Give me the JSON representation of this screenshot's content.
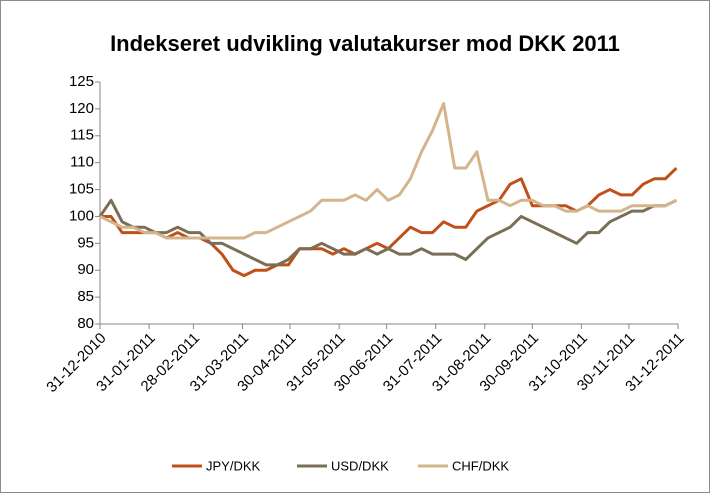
{
  "chart_data": {
    "type": "line",
    "title": "Indekseret udvikling valutakurser mod DKK 2011",
    "x": [
      "31-12-2010",
      "07-01-2011",
      "14-01-2011",
      "21-01-2011",
      "28-01-2011",
      "04-02-2011",
      "11-02-2011",
      "18-02-2011",
      "25-02-2011",
      "04-03-2011",
      "11-03-2011",
      "18-03-2011",
      "25-03-2011",
      "01-04-2011",
      "08-04-2011",
      "15-04-2011",
      "22-04-2011",
      "29-04-2011",
      "06-05-2011",
      "13-05-2011",
      "20-05-2011",
      "27-05-2011",
      "03-06-2011",
      "10-06-2011",
      "17-06-2011",
      "24-06-2011",
      "01-07-2011",
      "08-07-2011",
      "15-07-2011",
      "22-07-2011",
      "29-07-2011",
      "05-08-2011",
      "12-08-2011",
      "19-08-2011",
      "26-08-2011",
      "02-09-2011",
      "09-09-2011",
      "16-09-2011",
      "23-09-2011",
      "30-09-2011",
      "07-10-2011",
      "14-10-2011",
      "21-10-2011",
      "28-10-2011",
      "04-11-2011",
      "11-11-2011",
      "18-11-2011",
      "25-11-2011",
      "02-12-2011",
      "09-12-2011",
      "16-12-2011",
      "23-12-2011",
      "30-12-2011"
    ],
    "series": [
      {
        "name": "JPY/DKK",
        "color": "#c0501a",
        "values": [
          100,
          100,
          97,
          97,
          97,
          97,
          96,
          97,
          96,
          96,
          95,
          93,
          90,
          89,
          90,
          90,
          91,
          91,
          94,
          94,
          94,
          93,
          94,
          93,
          94,
          95,
          94,
          96,
          98,
          97,
          97,
          99,
          98,
          98,
          101,
          102,
          103,
          106,
          107,
          102,
          102,
          102,
          102,
          101,
          102,
          104,
          105,
          104,
          104,
          106,
          107,
          107,
          109
        ]
      },
      {
        "name": "USD/DKK",
        "color": "#7a6e58",
        "values": [
          100,
          103,
          99,
          98,
          98,
          97,
          97,
          98,
          97,
          97,
          95,
          95,
          94,
          93,
          92,
          91,
          91,
          92,
          94,
          94,
          95,
          94,
          93,
          93,
          94,
          93,
          94,
          93,
          93,
          94,
          93,
          93,
          93,
          92,
          94,
          96,
          97,
          98,
          100,
          99,
          98,
          97,
          96,
          95,
          97,
          97,
          99,
          100,
          101,
          101,
          102,
          102,
          103
        ]
      },
      {
        "name": "CHF/DKK",
        "color": "#d4b48a",
        "values": [
          100,
          99,
          98,
          98,
          97,
          97,
          96,
          96,
          96,
          96,
          96,
          96,
          96,
          96,
          97,
          97,
          98,
          99,
          100,
          101,
          103,
          103,
          103,
          104,
          103,
          105,
          103,
          104,
          107,
          112,
          116,
          121,
          109,
          109,
          112,
          103,
          103,
          102,
          103,
          103,
          102,
          102,
          101,
          101,
          102,
          101,
          101,
          101,
          102,
          102,
          102,
          102,
          103
        ]
      }
    ],
    "xlim": [
      "31-12-2010",
      "31-12-2011"
    ],
    "xticks": [
      "31-12-2010",
      "31-01-2011",
      "28-02-2011",
      "31-03-2011",
      "30-04-2011",
      "31-05-2011",
      "30-06-2011",
      "31-07-2011",
      "31-08-2011",
      "30-09-2011",
      "31-10-2011",
      "30-11-2011",
      "31-12-2011"
    ],
    "ylim": [
      80,
      125
    ],
    "yticks": [
      80,
      85,
      90,
      95,
      100,
      105,
      110,
      115,
      120,
      125
    ],
    "grid": false
  }
}
